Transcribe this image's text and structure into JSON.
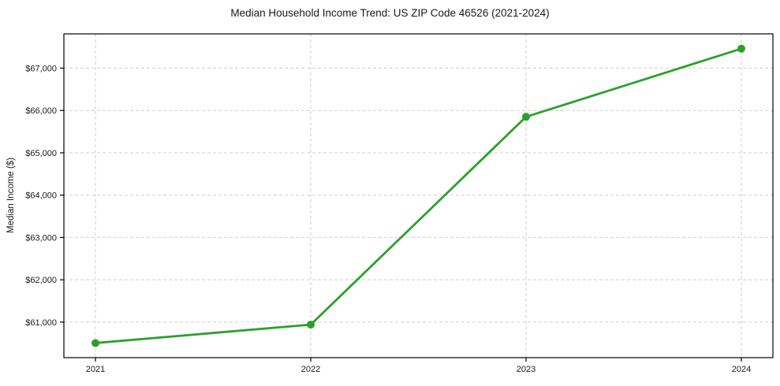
{
  "page": {
    "background": "#ffffff"
  },
  "chart_data": {
    "type": "line",
    "title": "Median Household Income Trend: US ZIP Code 46526 (2021-2024)",
    "xlabel": "",
    "ylabel": "Median Income ($)",
    "categories": [
      "2021",
      "2022",
      "2023",
      "2024"
    ],
    "series": [
      {
        "name": "Median Household Income",
        "values": [
          60505,
          60940,
          65850,
          67460
        ],
        "color": "#2ca02c"
      }
    ],
    "ylim": [
      60160,
      67810
    ],
    "yticks": [
      61000,
      62000,
      63000,
      64000,
      65000,
      66000,
      67000
    ],
    "ytick_prefix": "$",
    "grid": true,
    "grid_style": "dashed",
    "grid_color": "#cfcfcf",
    "axis_color": "#000000",
    "legend": "none",
    "marker": "circle",
    "marker_radius": 5,
    "line_width": 2.8
  }
}
